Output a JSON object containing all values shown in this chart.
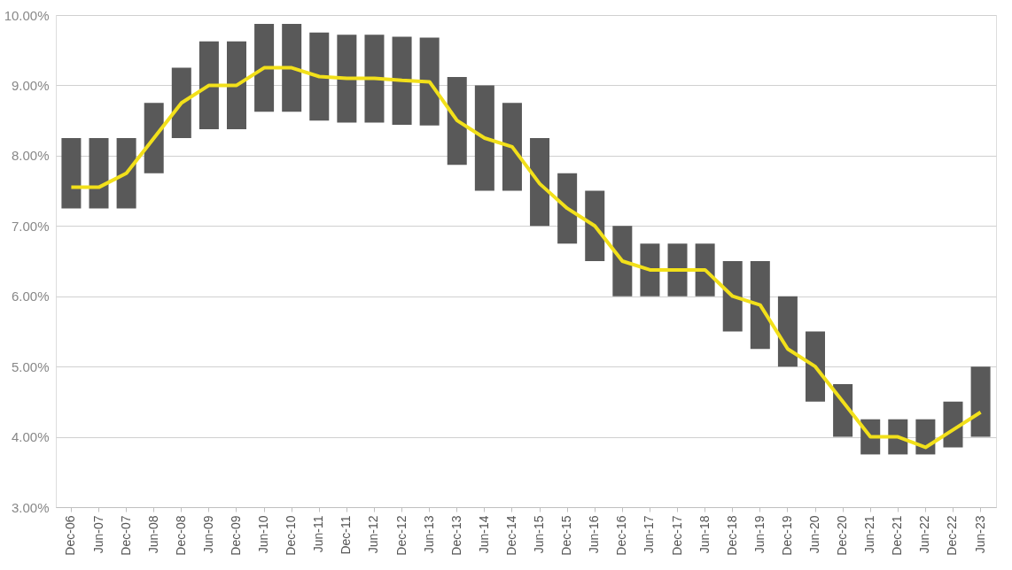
{
  "chart_data": {
    "type": "bar",
    "categories": [
      "Dec-06",
      "Jun-07",
      "Dec-07",
      "Jun-08",
      "Dec-08",
      "Jun-09",
      "Dec-09",
      "Jun-10",
      "Dec-10",
      "Jun-11",
      "Dec-11",
      "Jun-12",
      "Dec-12",
      "Jun-13",
      "Dec-13",
      "Jun-14",
      "Dec-14",
      "Jun-15",
      "Dec-15",
      "Jun-16",
      "Dec-16",
      "Jun-17",
      "Dec-17",
      "Jun-18",
      "Dec-18",
      "Jun-19",
      "Dec-19",
      "Jun-20",
      "Dec-20",
      "Jun-21",
      "Dec-21",
      "Jun-22",
      "Dec-22",
      "Jun-23"
    ],
    "series": [
      {
        "color": "#595959",
        "base": [
          7.25,
          7.25,
          7.25,
          7.75,
          8.25,
          8.375,
          8.375,
          8.625,
          8.625,
          8.5,
          8.47,
          8.47,
          8.44,
          8.43,
          7.87,
          7.5,
          7.5,
          7.0,
          6.75,
          6.5,
          6.0,
          6.0,
          6.0,
          6.0,
          5.5,
          5.25,
          5.0,
          4.5,
          4.0,
          3.75,
          3.75,
          3.75,
          3.85,
          4.0
        ],
        "values": [
          1.0,
          1.0,
          1.0,
          1.0,
          1.0,
          1.25,
          1.25,
          1.25,
          1.25,
          1.25,
          1.25,
          1.25,
          1.25,
          1.25,
          1.25,
          1.5,
          1.25,
          1.25,
          1.0,
          1.0,
          1.0,
          0.75,
          0.75,
          0.75,
          1.0,
          1.25,
          1.0,
          1.0,
          0.75,
          0.5,
          0.5,
          0.5,
          0.65,
          1.0
        ]
      },
      {
        "type": "line",
        "color": "#f2e01a",
        "values": [
          7.55,
          7.55,
          7.75,
          8.25,
          8.75,
          9.0,
          9.0,
          9.25,
          9.25,
          9.125,
          9.1,
          9.1,
          9.07,
          9.05,
          8.5,
          8.25,
          8.125,
          7.6,
          7.25,
          7.0,
          6.5,
          6.375,
          6.375,
          6.375,
          6.0,
          5.875,
          5.25,
          5.0,
          4.5,
          4.0,
          4.0,
          3.85,
          4.1,
          4.35
        ]
      }
    ],
    "ylim": [
      3,
      10
    ],
    "yticks": [
      {
        "value": 3,
        "label": "3.00%"
      },
      {
        "value": 4,
        "label": "4.00%"
      },
      {
        "value": 5,
        "label": "5.00%"
      },
      {
        "value": 6,
        "label": "6.00%"
      },
      {
        "value": 7,
        "label": "7.00%"
      },
      {
        "value": 8,
        "label": "8.00%"
      },
      {
        "value": 9,
        "label": "9.00%"
      },
      {
        "value": 10,
        "label": "10.00%"
      }
    ],
    "grid": "y"
  }
}
